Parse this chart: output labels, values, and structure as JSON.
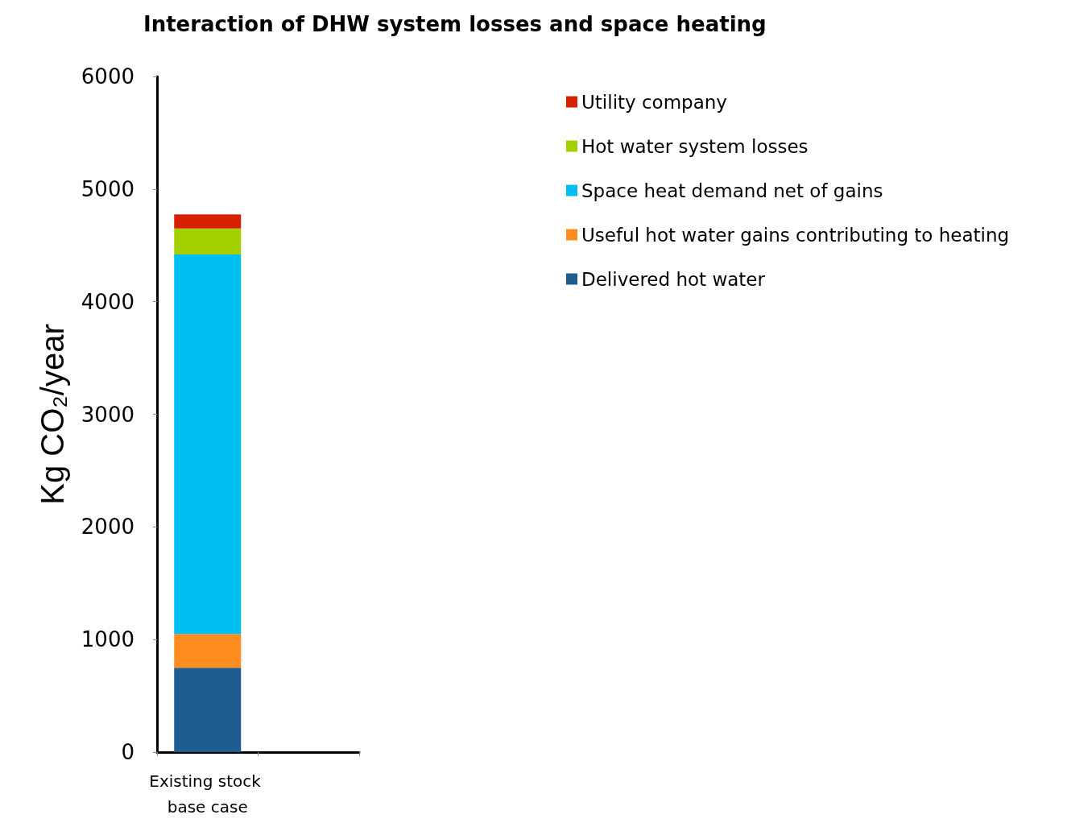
{
  "chart_data": {
    "type": "bar",
    "title": "Interaction of DHW system losses and space heating",
    "ylabel": "Kg CO₂/year",
    "categories": [
      "Existing stock base case",
      null
    ],
    "stacked": true,
    "series": [
      {
        "name": "Delivered hot water",
        "color": "#1f5c8f",
        "values": [
          750,
          null
        ]
      },
      {
        "name": "Useful hot water gains contributing to heating",
        "color": "#ff8c1e",
        "values": [
          300,
          null
        ]
      },
      {
        "name": "Space heat demand net of gains",
        "color": "#00bdf2",
        "values": [
          3370,
          null
        ]
      },
      {
        "name": "Hot water system losses",
        "color": "#a5d000",
        "values": [
          230,
          null
        ]
      },
      {
        "name": "Utility company",
        "color": "#d62000",
        "values": [
          125,
          null
        ]
      }
    ],
    "ylim": [
      0,
      6000
    ],
    "yticks": [
      0,
      1000,
      2000,
      3000,
      4000,
      5000,
      6000
    ],
    "grid": false,
    "legend": "top right"
  }
}
